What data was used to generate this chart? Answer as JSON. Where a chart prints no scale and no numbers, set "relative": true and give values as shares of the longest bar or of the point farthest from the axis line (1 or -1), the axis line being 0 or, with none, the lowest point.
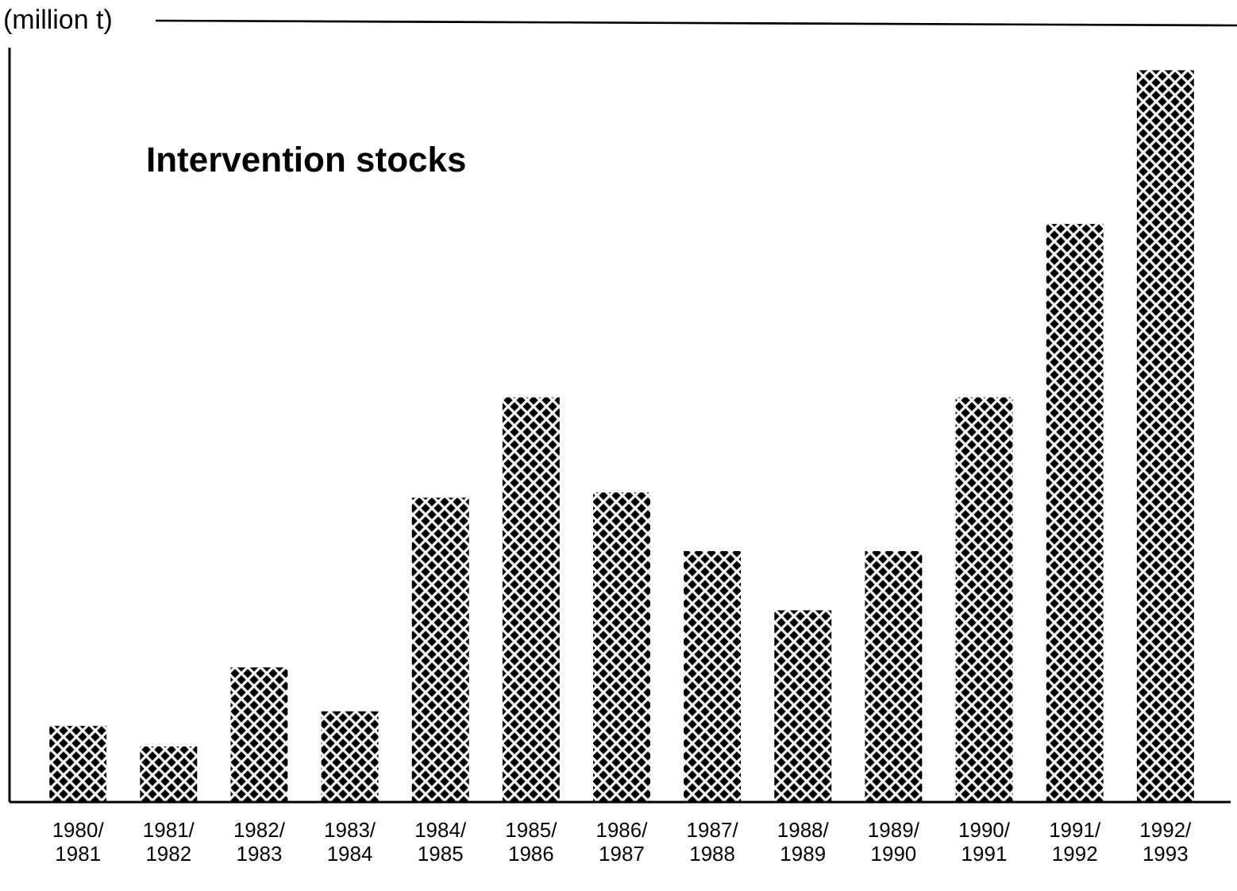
{
  "chart_data": {
    "type": "bar",
    "title": "Intervention stocks",
    "ylabel": "(million t)",
    "relative": true,
    "categories": [
      "1980/\n1981",
      "1981/\n1982",
      "1982/\n1983",
      "1983/\n1984",
      "1984/\n1985",
      "1985/\n1986",
      "1986/\n1987",
      "1987/\n1988",
      "1988/\n1989",
      "1989/\n1990",
      "1990/\n1991",
      "1991/\n1992",
      "1992/\n1993"
    ],
    "values": [
      0.104,
      0.076,
      0.184,
      0.124,
      0.416,
      0.553,
      0.423,
      0.343,
      0.262,
      0.343,
      0.553,
      0.79,
      1
    ],
    "color": "#000000"
  }
}
